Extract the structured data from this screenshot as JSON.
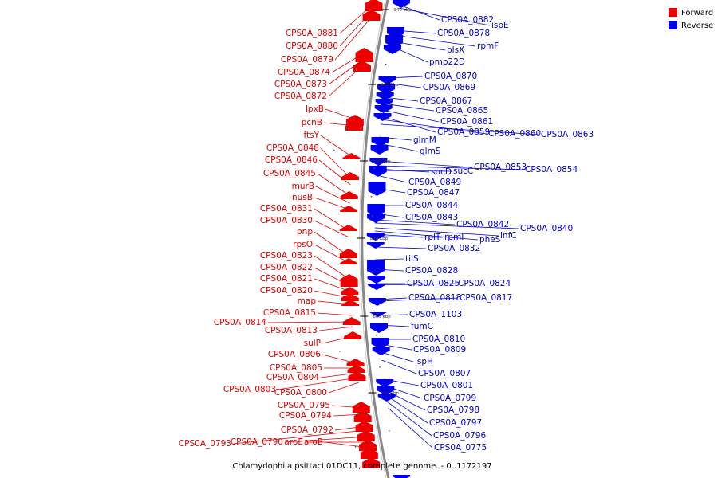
{
  "title": "Chlamydophila psittaci 01DC11, complete genome. - 0..1172197",
  "colors": {
    "forward": "#ee0000",
    "reverse": "#0000ee",
    "forward_text": "#dd0000",
    "reverse_text": "#0000cc",
    "backbone": "#888888"
  },
  "legend": [
    {
      "label": "Forward",
      "color": "#ee0000"
    },
    {
      "label": "Reverse",
      "color": "#0000ee"
    }
  ],
  "ticks": [
    "940 kbp",
    "920 kbp",
    "900 kbp",
    "880 kbp",
    "860 kbp",
    "840 kbp"
  ],
  "forward_labels": [
    "CPS0A_0881",
    "CPS0A_0880",
    "CPS0A_0879",
    "CPS0A_0874",
    "CPS0A_0873",
    "CPS0A_0872",
    "lpxB",
    "pcnB",
    "ftsY",
    "CPS0A_0848",
    "CPS0A_0846",
    "CPS0A_0845",
    "murB",
    "nusB",
    "CPS0A_0831",
    "CPS0A_0830",
    "pnp",
    "rpsO",
    "CPS0A_0823",
    "CPS0A_0822",
    "CPS0A_0821",
    "CPS0A_0820",
    "map",
    "CPS0A_0815",
    "CPS0A_0814",
    "CPS0A_0813",
    "sulP",
    "CPS0A_0806",
    "CPS0A_0805",
    "CPS0A_0804",
    "CPS0A_0803",
    "CPS0A_0800",
    "CPS0A_0795",
    "CPS0A_0794",
    "CPS0A_0792",
    "CPS0A_0793",
    "CPS0A_0790",
    "aroE",
    "aroB"
  ],
  "reverse_labels": [
    "CPS0A_0882",
    "ispE",
    "CPS0A_0878",
    "rpmF",
    "plsX",
    "pmp22D",
    "CPS0A_0870",
    "CPS0A_0869",
    "CPS0A_0867",
    "CPS0A_0865",
    "CPS0A_0861",
    "CPS0A_0859",
    "CPS0A_0860",
    "CPS0A_0863",
    "glmM",
    "glmS",
    "CPS0A_0853",
    "CPS0A_0854",
    "sucD",
    "sucC",
    "CPS0A_0849",
    "CPS0A_0847",
    "CPS0A_0844",
    "CPS0A_0843",
    "CPS0A_0842",
    "CPS0A_0840",
    "infC",
    "pheS",
    "rplT",
    "rpmI",
    "CPS0A_0832",
    "tilS",
    "CPS0A_0828",
    "CPS0A_0825",
    "CPS0A_0824",
    "CPS0A_0818",
    "CPS0A_0817",
    "CPS0A_1103",
    "fumC",
    "CPS0A_0810",
    "CPS0A_0809",
    "ispH",
    "CPS0A_0807",
    "CPS0A_0801",
    "CPS0A_0799",
    "CPS0A_0798",
    "CPS0A_0797",
    "CPS0A_0796",
    "CPS0A_0775"
  ]
}
